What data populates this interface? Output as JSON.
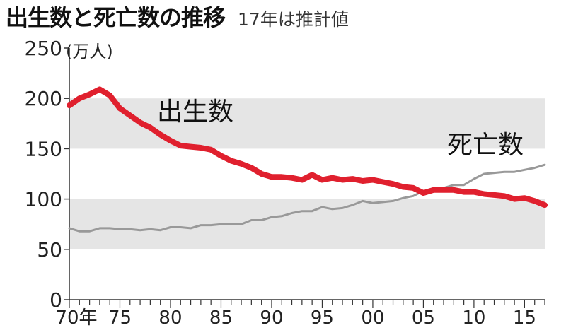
{
  "chart_data": {
    "type": "line",
    "title": "出生数と死亡数の推移",
    "subtitle": "17年は推計値",
    "ylabel": "(万人)",
    "ylim": [
      0,
      250
    ],
    "yticks": [
      "0",
      "50",
      "100",
      "150",
      "200",
      "250"
    ],
    "xlim": [
      1970,
      2017
    ],
    "xticks": [
      {
        "year": 1970,
        "label": "70年"
      },
      {
        "year": 1975,
        "label": "75"
      },
      {
        "year": 1980,
        "label": "80"
      },
      {
        "year": 1985,
        "label": "85"
      },
      {
        "year": 1990,
        "label": "90"
      },
      {
        "year": 1995,
        "label": "95"
      },
      {
        "year": 2000,
        "label": "00"
      },
      {
        "year": 2005,
        "label": "05"
      },
      {
        "year": 2010,
        "label": "10"
      },
      {
        "year": 2015,
        "label": "15"
      }
    ],
    "bands": [
      [
        50,
        100
      ],
      [
        150,
        200
      ]
    ],
    "band_color": "#e5e5e5",
    "x": [
      1970,
      1971,
      1972,
      1973,
      1974,
      1975,
      1976,
      1977,
      1978,
      1979,
      1980,
      1981,
      1982,
      1983,
      1984,
      1985,
      1986,
      1987,
      1988,
      1989,
      1990,
      1991,
      1992,
      1993,
      1994,
      1995,
      1996,
      1997,
      1998,
      1999,
      2000,
      2001,
      2002,
      2003,
      2004,
      2005,
      2006,
      2007,
      2008,
      2009,
      2010,
      2011,
      2012,
      2013,
      2014,
      2015,
      2016,
      2017
    ],
    "series": [
      {
        "name": "出生数",
        "color": "#e0202e",
        "values": [
          193,
          200,
          204,
          209,
          203,
          190,
          183,
          176,
          171,
          164,
          158,
          153,
          152,
          151,
          149,
          143,
          138,
          135,
          131,
          125,
          122,
          122,
          121,
          119,
          124,
          119,
          121,
          119,
          120,
          118,
          119,
          117,
          115,
          112,
          111,
          106,
          109,
          109,
          109,
          107,
          107,
          105,
          104,
          103,
          100,
          101,
          98,
          94
        ]
      },
      {
        "name": "死亡数",
        "color": "#999999",
        "values": [
          71,
          68,
          68,
          71,
          71,
          70,
          70,
          69,
          70,
          69,
          72,
          72,
          71,
          74,
          74,
          75,
          75,
          75,
          79,
          79,
          82,
          83,
          86,
          88,
          88,
          92,
          90,
          91,
          94,
          98,
          96,
          97,
          98,
          101,
          103,
          108,
          108,
          111,
          114,
          114,
          120,
          125,
          126,
          127,
          127,
          129,
          131,
          134
        ]
      }
    ]
  }
}
